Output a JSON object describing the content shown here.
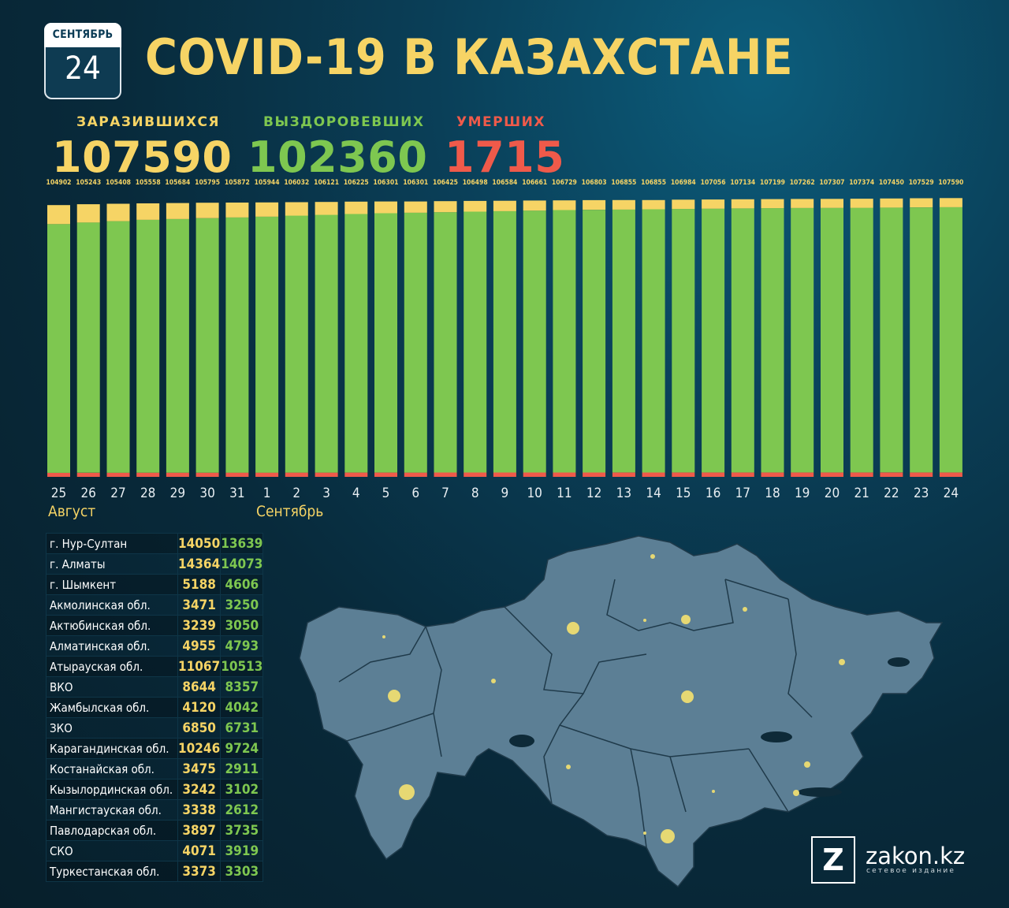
{
  "calendar": {
    "month": "СЕНТЯБРЬ",
    "day": "24"
  },
  "title": "COVID-19 В КАЗАХСТАНЕ",
  "stats": {
    "infected": {
      "label": "ЗАРАЗИВШИХСЯ",
      "value": "107590"
    },
    "recovered": {
      "label": "ВЫЗДОРОВЕВШИХ",
      "value": "102360"
    },
    "deaths": {
      "label": "УМЕРШИХ",
      "value": "1715"
    }
  },
  "colors": {
    "infected": "#f6d465",
    "recovered": "#7ec750",
    "deaths": "#ef5a4a"
  },
  "chart_data": {
    "type": "bar",
    "stacked": true,
    "categories": [
      "25",
      "26",
      "27",
      "28",
      "29",
      "30",
      "31",
      "1",
      "2",
      "3",
      "4",
      "5",
      "6",
      "7",
      "8",
      "9",
      "10",
      "11",
      "12",
      "13",
      "14",
      "15",
      "16",
      "17",
      "18",
      "19",
      "20",
      "21",
      "22",
      "23",
      "24"
    ],
    "month_labels": [
      {
        "label": "Август",
        "at": "25"
      },
      {
        "label": "Сентябрь",
        "at": "1"
      }
    ],
    "totals": [
      104902,
      105243,
      105408,
      105558,
      105684,
      105795,
      105872,
      105944,
      106032,
      106121,
      106225,
      106301,
      106301,
      106425,
      106498,
      106584,
      106661,
      106729,
      106803,
      106855,
      106855,
      106984,
      107056,
      107134,
      107199,
      107262,
      107307,
      107374,
      107450,
      107529,
      107590
    ],
    "series": [
      {
        "key": "deaths",
        "values": [
          1580,
          1590,
          1598,
          1608,
          1616,
          1622,
          1628,
          1633,
          1639,
          1645,
          1650,
          1655,
          1655,
          1660,
          1665,
          1670,
          1674,
          1679,
          1683,
          1687,
          1687,
          1693,
          1697,
          1700,
          1703,
          1706,
          1708,
          1710,
          1712,
          1713,
          1715
        ]
      },
      {
        "key": "recovered",
        "values": [
          96000,
          96600,
          97100,
          97600,
          97900,
          98200,
          98500,
          98800,
          99200,
          99500,
          99800,
          100100,
          100300,
          100500,
          100700,
          100900,
          101100,
          101300,
          101400,
          101500,
          101600,
          101700,
          101800,
          101900,
          102000,
          102050,
          102100,
          102150,
          102200,
          102280,
          102360
        ]
      },
      {
        "key": "active",
        "values": [
          7322,
          7053,
          6710,
          6350,
          6168,
          5973,
          5744,
          5511,
          5193,
          4976,
          4775,
          4546,
          4346,
          4265,
          4133,
          4014,
          3887,
          3750,
          3720,
          3668,
          3568,
          3591,
          3559,
          3534,
          3496,
          3506,
          3499,
          3514,
          3538,
          3536,
          3515
        ]
      }
    ]
  },
  "regions": [
    {
      "name": "г. Нур-Султан",
      "infected": "14050",
      "recovered": "13639"
    },
    {
      "name": "г. Алматы",
      "infected": "14364",
      "recovered": "14073"
    },
    {
      "name": "г. Шымкент",
      "infected": "5188",
      "recovered": "4606"
    },
    {
      "name": "Акмолинская обл.",
      "infected": "3471",
      "recovered": "3250"
    },
    {
      "name": "Актюбинская обл.",
      "infected": "3239",
      "recovered": "3050"
    },
    {
      "name": "Алматинская обл.",
      "infected": "4955",
      "recovered": "4793"
    },
    {
      "name": "Атырауская обл.",
      "infected": "11067",
      "recovered": "10513"
    },
    {
      "name": "ВКО",
      "infected": "8644",
      "recovered": "8357"
    },
    {
      "name": "Жамбылская обл.",
      "infected": "4120",
      "recovered": "4042"
    },
    {
      "name": "ЗКО",
      "infected": "6850",
      "recovered": "6731"
    },
    {
      "name": "Карагандинская обл.",
      "infected": "10246",
      "recovered": "9724"
    },
    {
      "name": "Костанайская обл.",
      "infected": "3475",
      "recovered": "2911"
    },
    {
      "name": "Кызылординская обл.",
      "infected": "3242",
      "recovered": "3102"
    },
    {
      "name": "Мангистауская обл.",
      "infected": "3338",
      "recovered": "2612"
    },
    {
      "name": "Павлодарская обл.",
      "infected": "3897",
      "recovered": "3735"
    },
    {
      "name": "СКО",
      "infected": "4071",
      "recovered": "3919"
    },
    {
      "name": "Туркестанская обл.",
      "infected": "3373",
      "recovered": "3303"
    }
  ],
  "brand": {
    "logo_letter": "Z",
    "name": "zakon.kz",
    "tagline": "сетевое издание"
  }
}
